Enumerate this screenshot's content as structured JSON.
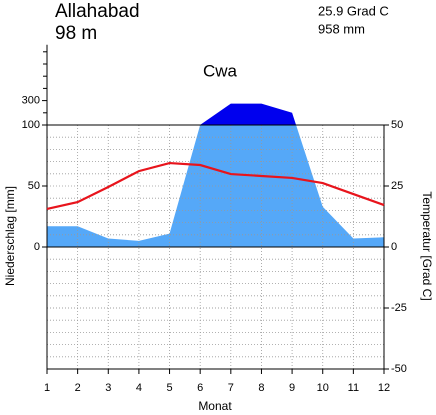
{
  "station": {
    "name": "Allahabad",
    "elevation": "98 m",
    "mean_temperature": "25.9 Grad C",
    "annual_precipitation": "958 mm"
  },
  "chart_data": {
    "type": "climate",
    "title": "Cwa",
    "x": [
      1,
      2,
      3,
      4,
      5,
      6,
      7,
      8,
      9,
      10,
      11,
      12
    ],
    "xlim": [
      1,
      12
    ],
    "xticks": [
      1,
      2,
      3,
      4,
      5,
      6,
      7,
      8,
      9,
      10,
      11,
      12
    ],
    "xlabel": "Monat",
    "ylabel": "Niederschlag [mm]",
    "y2label": "Temperatur [Grad C]",
    "ylim": [
      -100,
      700
    ],
    "yticks": [
      0,
      50,
      100,
      300
    ],
    "yminorticks": [
      -90,
      -80,
      -70,
      -60,
      -50,
      -40,
      -30,
      -20,
      -10,
      10,
      20,
      30,
      40,
      60,
      70,
      80,
      90,
      200,
      400,
      500,
      600,
      700
    ],
    "y2lim": [
      -50,
      50
    ],
    "y2ticks": [
      -50,
      -25,
      0,
      25,
      50
    ],
    "grid": true,
    "series": [
      {
        "name": "Niederschlag",
        "color": "#55a8f8",
        "color_over_100": "#0000ee",
        "values": [
          17,
          17,
          7,
          5,
          11,
          101,
          275,
          275,
          200,
          33,
          7,
          8
        ]
      },
      {
        "name": "Temperatur",
        "color": "#e8141c",
        "axis": "y2",
        "values": [
          15.6,
          18.4,
          24.6,
          31.1,
          34.4,
          33.6,
          29.9,
          29.1,
          28.3,
          26.2,
          21.7,
          17.2
        ]
      }
    ]
  }
}
